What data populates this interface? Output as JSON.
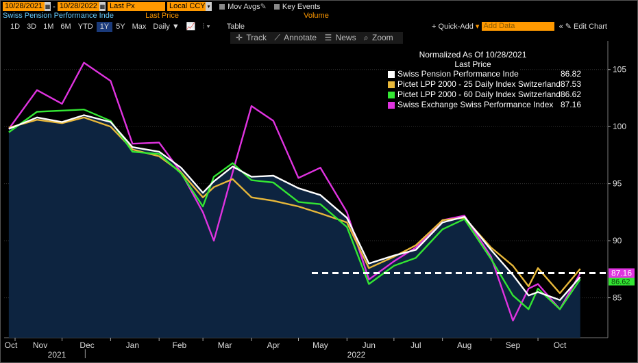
{
  "toolbar": {
    "date_from": "10/28/2021",
    "date_to": "10/28/2022",
    "field": "Last Px",
    "currency": "Local CCY",
    "mov_avgs": "Mov Avgs",
    "key_events": "Key Events",
    "security": "Swiss Pension Performance Inde",
    "last_price": "Last Price",
    "volume": "Volume",
    "periods": [
      "1D",
      "3D",
      "1M",
      "6M",
      "YTD",
      "1Y",
      "5Y",
      "Max"
    ],
    "selected_period": "1Y",
    "frequency": "Daily",
    "table": "Table",
    "quick_add": "+ Quick-Add",
    "add_data": "Add Data",
    "edit_chart": "Edit Chart",
    "track": "Track",
    "annotate": "Annotate",
    "news": "News",
    "zoom": "Zoom"
  },
  "colors": {
    "white_line": "#ffffff",
    "gold_line": "#e8b83a",
    "green_line": "#33e633",
    "magenta_line": "#e033e0",
    "area_fill": "#0d2440",
    "dashed_line": "#ffffff"
  },
  "chart_data": {
    "type": "line",
    "legend_title": "Normalized As Of 10/28/2021",
    "legend_subtitle": "Last Price",
    "legend_position": "top-right",
    "x_ticks": [
      "Oct",
      "Nov",
      "Dec",
      "Jan",
      "Feb",
      "Mar",
      "Apr",
      "May",
      "Jun",
      "Jul",
      "Aug",
      "Sep",
      "Oct"
    ],
    "year_labels": [
      "2021",
      "2022"
    ],
    "y_ticks": [
      105,
      100,
      95,
      90,
      85
    ],
    "ylim": [
      81.5,
      107.5
    ],
    "x": [
      "2021-10-28",
      "2021-11-15",
      "2021-12-01",
      "2021-12-15",
      "2022-01-01",
      "2022-01-15",
      "2022-02-01",
      "2022-02-15",
      "2022-03-01",
      "2022-03-08",
      "2022-03-20",
      "2022-04-01",
      "2022-04-15",
      "2022-05-01",
      "2022-05-15",
      "2022-06-01",
      "2022-06-15",
      "2022-07-01",
      "2022-07-15",
      "2022-08-01",
      "2022-08-15",
      "2022-09-01",
      "2022-09-15",
      "2022-09-25",
      "2022-10-01",
      "2022-10-15",
      "2022-10-28"
    ],
    "series": [
      {
        "name": "Swiss Pension Performance Inde",
        "last": "86.82",
        "values": [
          99.8,
          100.8,
          100.4,
          101.0,
          100.4,
          98.2,
          97.8,
          96.4,
          94.2,
          95.2,
          96.5,
          95.6,
          95.7,
          94.6,
          94.0,
          92.0,
          88.0,
          88.7,
          89.2,
          91.6,
          92.1,
          89.2,
          87.0,
          85.2,
          85.5,
          84.8,
          86.82
        ]
      },
      {
        "name": "Pictet LPP 2000 - 25 Daily Index Switzerland",
        "last": "87.53",
        "values": [
          99.9,
          100.6,
          100.3,
          100.8,
          100.0,
          98.0,
          97.4,
          96.0,
          93.8,
          94.7,
          95.4,
          93.8,
          93.5,
          93.0,
          92.4,
          91.6,
          87.6,
          88.6,
          89.6,
          91.8,
          92.0,
          89.4,
          87.8,
          86.0,
          87.6,
          85.4,
          87.53
        ]
      },
      {
        "name": "Pictet LPP 2000 - 60 Daily Index Switzerland",
        "last": "86.62",
        "values": [
          99.5,
          101.3,
          101.4,
          101.5,
          100.5,
          97.8,
          97.6,
          95.9,
          93.0,
          95.6,
          96.8,
          95.3,
          95.1,
          93.4,
          93.2,
          91.2,
          86.2,
          87.8,
          88.5,
          91.0,
          91.9,
          88.4,
          85.2,
          84.0,
          85.8,
          84.0,
          86.62
        ]
      },
      {
        "name": "Swiss Exchange Swiss Performance Index",
        "last": "87.16",
        "values": [
          99.8,
          103.2,
          102.0,
          105.6,
          104.0,
          98.5,
          98.6,
          96.0,
          92.5,
          90.0,
          96.0,
          101.8,
          100.5,
          95.5,
          96.4,
          92.5,
          86.6,
          88.2,
          89.4,
          91.8,
          92.2,
          88.6,
          83.0,
          85.8,
          86.2,
          84.0,
          87.16
        ]
      }
    ],
    "last_value_tag": "87.16",
    "partial_tag": "86.62",
    "reference_line": 87.16
  }
}
